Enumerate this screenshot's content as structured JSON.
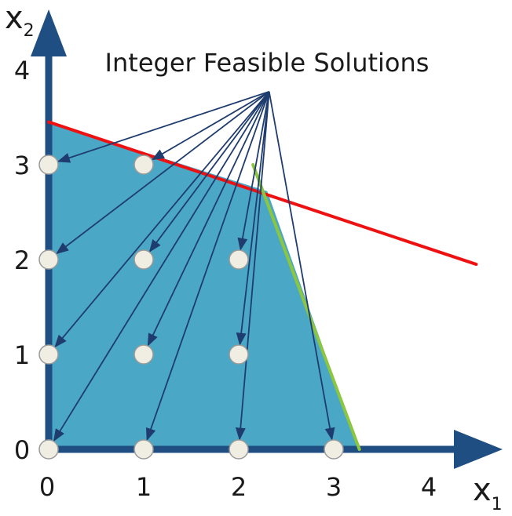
{
  "title": "Integer Feasible Solutions",
  "axes": {
    "x_label": "x",
    "x_sub": "1",
    "y_label": "x",
    "y_sub": "2",
    "x_ticks": [
      "0",
      "1",
      "2",
      "3",
      "4"
    ],
    "y_ticks": [
      "0",
      "1",
      "2",
      "3",
      "4"
    ],
    "x_range": [
      0,
      4.7
    ],
    "y_range": [
      0,
      4.6
    ]
  },
  "feasible_region": {
    "vertices": [
      [
        0,
        0
      ],
      [
        0,
        3.45
      ],
      [
        2.3,
        2.72
      ],
      [
        3.27,
        0
      ]
    ],
    "color": "#4aa8c6"
  },
  "constraints": [
    {
      "id": "red-constraint",
      "color": "#ee1111",
      "from": [
        0,
        3.45
      ],
      "to": [
        4.5,
        1.95
      ]
    },
    {
      "id": "green-constraint",
      "color": "#8cc63f",
      "from": [
        2.15,
        3.0
      ],
      "to": [
        3.27,
        0
      ]
    }
  ],
  "integer_points": [
    [
      0,
      3
    ],
    [
      1,
      3
    ],
    [
      0,
      2
    ],
    [
      1,
      2
    ],
    [
      2,
      2
    ],
    [
      0,
      1
    ],
    [
      1,
      1
    ],
    [
      2,
      1
    ],
    [
      0,
      0
    ],
    [
      1,
      0
    ],
    [
      2,
      0
    ],
    [
      3,
      0
    ]
  ],
  "annotation_source": [
    2.32,
    3.77
  ],
  "arrow_color": "#1f3c6e",
  "axis_color": "#1f4e82",
  "point_fill": "#f0ede2"
}
